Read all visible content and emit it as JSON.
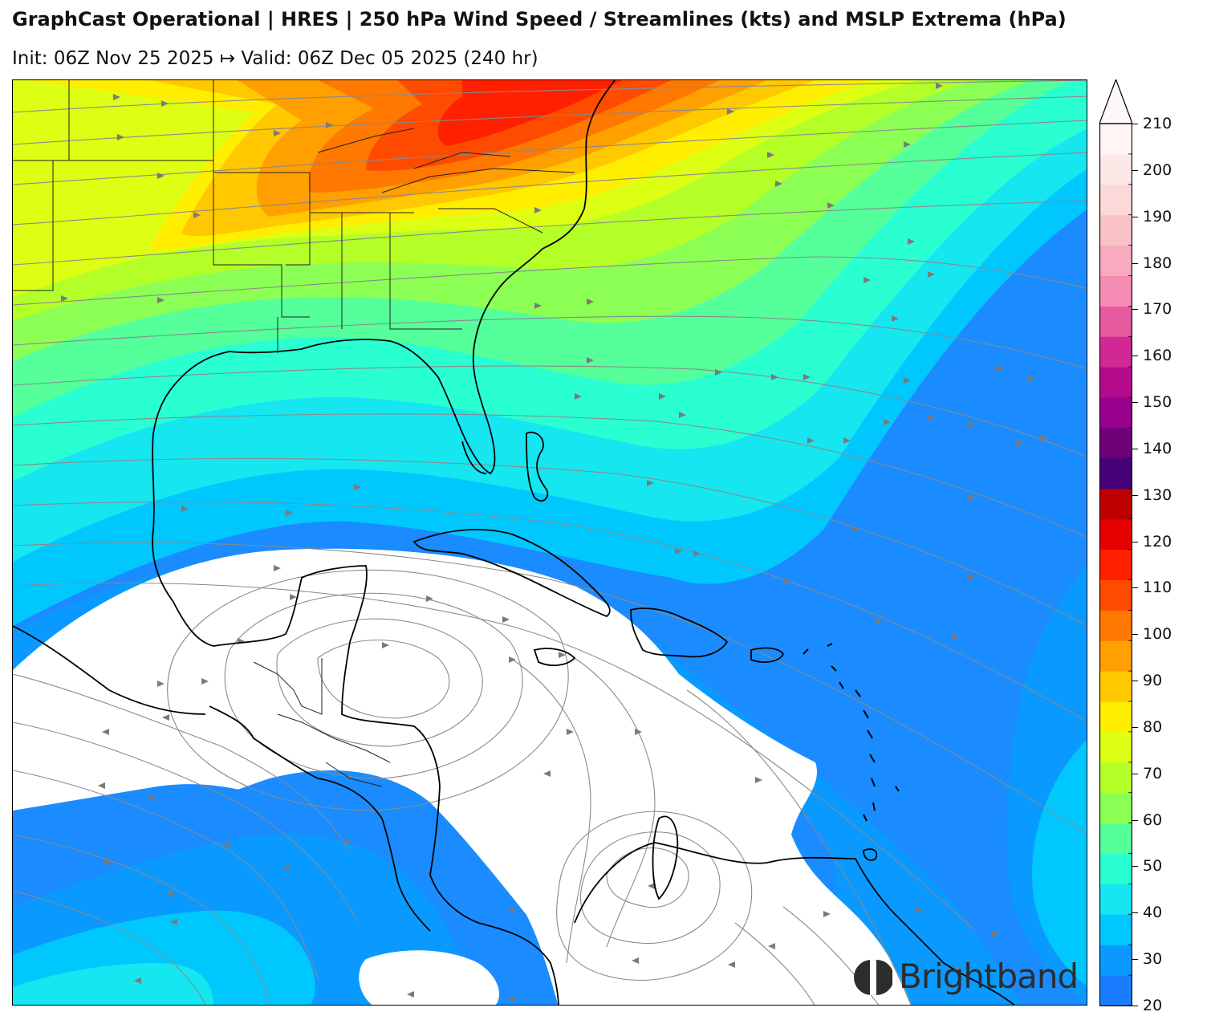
{
  "header": {
    "title": "GraphCast Operational | HRES | 250 hPa Wind Speed / Streamlines (kts) and MSLP Extrema (hPa)",
    "subtitle": "Init: 06Z Nov 25 2025 ↦ Valid: 06Z Dec 05 2025 (240 hr)"
  },
  "colorbar": {
    "ticks": [
      "20",
      "30",
      "40",
      "50",
      "60",
      "70",
      "80",
      "90",
      "100",
      "110",
      "120",
      "130",
      "140",
      "150",
      "160",
      "170",
      "180",
      "190",
      "200",
      "210"
    ],
    "colors": [
      "#1a7dff",
      "#0a9aff",
      "#00c8ff",
      "#15e6f0",
      "#2affd2",
      "#55ff9a",
      "#8cff55",
      "#b4ff28",
      "#dcff14",
      "#ffee00",
      "#ffc800",
      "#ffa000",
      "#ff7800",
      "#ff4b00",
      "#ff2000",
      "#e60000",
      "#be0000",
      "#460078",
      "#6e0078",
      "#96008c",
      "#b40a8c",
      "#d22896",
      "#e65aa0",
      "#f58cb4",
      "#f8aabe",
      "#fac3c8",
      "#fcd8d8",
      "#fde8e8",
      "#fff5f5"
    ]
  },
  "map": {
    "label_names": []
  },
  "logo": {
    "text": "Brightband"
  }
}
